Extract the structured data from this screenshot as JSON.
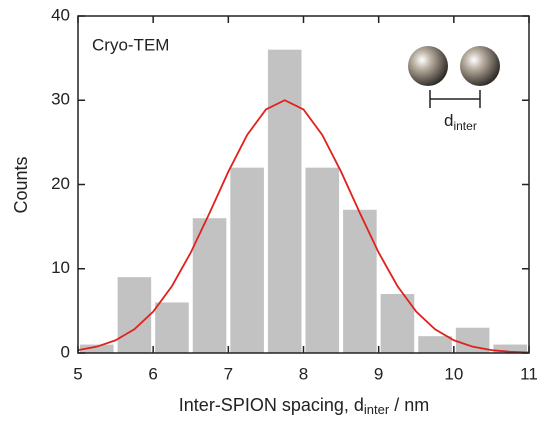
{
  "chart_data": {
    "type": "histogram",
    "annotation": "Cryo-TEM",
    "ylabel": "Counts",
    "xlabel": {
      "text": "Inter-SPION spacing, d",
      "sub": "inter",
      "tail": " / nm"
    },
    "inset_label": {
      "text": "d",
      "sub": "inter"
    },
    "bins": [
      5,
      5.5,
      6,
      6.5,
      7,
      7.5,
      8,
      8.5,
      9,
      9.5,
      10,
      10.5,
      11
    ],
    "values": [
      1,
      9,
      6,
      16,
      22,
      36,
      22,
      17,
      7,
      2,
      3,
      1
    ],
    "color": "#c2c2c2",
    "fit": {
      "color": "#e0211c",
      "x": [
        5,
        5.25,
        5.5,
        5.75,
        6,
        6.25,
        6.5,
        6.75,
        7,
        7.25,
        7.5,
        7.75,
        8,
        8.25,
        8.5,
        8.75,
        9,
        9.25,
        9.5,
        9.75,
        10,
        10.25,
        10.5,
        10.75,
        11
      ],
      "values": [
        0.34,
        0.75,
        1.51,
        2.82,
        4.91,
        7.94,
        11.92,
        16.62,
        21.52,
        25.88,
        28.91,
        30,
        28.91,
        25.88,
        21.52,
        16.62,
        11.92,
        7.94,
        4.91,
        2.82,
        1.51,
        0.75,
        0.34,
        0.14,
        0.05
      ]
    },
    "xlim": [
      5,
      11
    ],
    "xticks": [
      5,
      6,
      7,
      8,
      9,
      10,
      11
    ],
    "ylim": [
      0,
      40
    ],
    "yticks": [
      0,
      10,
      20,
      30,
      40
    ]
  }
}
